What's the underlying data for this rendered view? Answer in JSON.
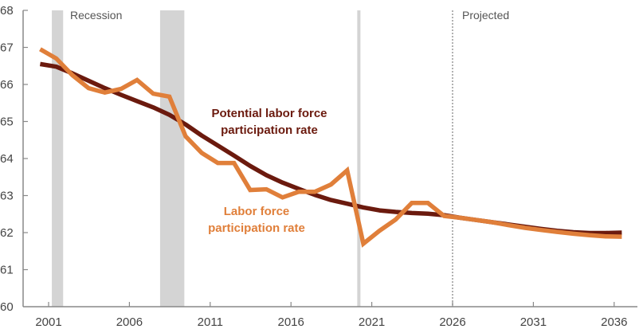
{
  "chart_data": {
    "type": "line",
    "title": "",
    "xlabel": "",
    "ylabel": "",
    "ylim": [
      60,
      68
    ],
    "xlim": [
      2000,
      2037
    ],
    "grid": false,
    "legend_position": "inline labels",
    "y_ticks": [
      60,
      61,
      62,
      63,
      64,
      65,
      66,
      67,
      68
    ],
    "x_ticks": [
      2001,
      2006,
      2011,
      2016,
      2021,
      2026,
      2031,
      2036
    ],
    "x": [
      2000,
      2001,
      2002,
      2003,
      2004,
      2005,
      2006,
      2007,
      2008,
      2009,
      2010,
      2011,
      2012,
      2013,
      2014,
      2015,
      2016,
      2017,
      2018,
      2019,
      2020,
      2021,
      2022,
      2023,
      2024,
      2025,
      2026,
      2027,
      2028,
      2029,
      2030,
      2031,
      2032,
      2033,
      2034,
      2035,
      2036
    ],
    "series": [
      {
        "name": "Potential labor force participation rate",
        "color": "#6b1a0e",
        "values": [
          66.55,
          66.48,
          66.3,
          66.1,
          65.9,
          65.72,
          65.55,
          65.38,
          65.18,
          64.92,
          64.62,
          64.35,
          64.08,
          63.8,
          63.55,
          63.35,
          63.18,
          63.02,
          62.88,
          62.78,
          62.68,
          62.6,
          62.56,
          62.53,
          62.51,
          62.47,
          62.4,
          62.34,
          62.28,
          62.22,
          62.16,
          62.1,
          62.05,
          62.01,
          61.99,
          61.99,
          62.0
        ]
      },
      {
        "name": "Labor force participation rate",
        "color": "#e07f3a",
        "values": [
          66.95,
          66.7,
          66.25,
          65.9,
          65.78,
          65.88,
          66.12,
          65.75,
          65.67,
          64.6,
          64.15,
          63.88,
          63.88,
          63.15,
          63.17,
          62.95,
          63.1,
          63.1,
          63.3,
          63.68,
          61.7,
          62.05,
          62.35,
          62.8,
          62.8,
          62.45,
          62.4,
          62.34,
          62.28,
          62.2,
          62.13,
          62.07,
          62.02,
          61.97,
          61.93,
          61.9,
          61.89
        ]
      }
    ],
    "shaded_regions": [
      {
        "label": "Recession",
        "start": 2001.2,
        "end": 2001.9
      },
      {
        "label": "Recession",
        "start": 2007.9,
        "end": 2009.4
      },
      {
        "label": "Recession",
        "start": 2020.1,
        "end": 2020.3
      }
    ],
    "vertical_lines": [
      {
        "x": 2026,
        "style": "dotted",
        "label": "Projected"
      }
    ],
    "annotations": [
      {
        "text": "Recession",
        "x": 2002.3,
        "y": 67.7
      },
      {
        "text": "Projected",
        "x": 2026.5,
        "y": 67.7
      },
      {
        "text": "Potential labor force participation rate",
        "x": 2014.5,
        "y": 64.8
      },
      {
        "text": "Labor force participation rate",
        "x": 2014.5,
        "y": 62.1
      }
    ]
  },
  "labels": {
    "recession": "Recession",
    "projected": "Projected",
    "potential_line1": "Potential labor force",
    "potential_line2": "participation rate",
    "lfpr_line1": "Labor force",
    "lfpr_line2": "participation rate"
  },
  "colors": {
    "potential": "#6b1a0e",
    "lfpr": "#e07f3a",
    "recession_band": "#d4d4d4",
    "axis": "#888888"
  }
}
